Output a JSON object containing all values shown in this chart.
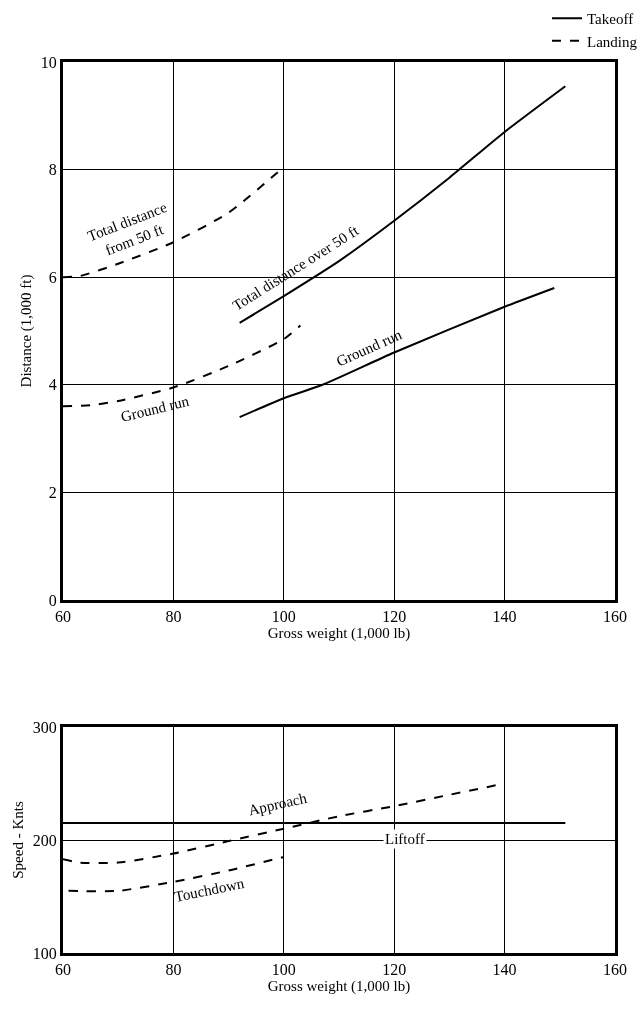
{
  "chart_data": [
    {
      "type": "line",
      "xlabel": "Gross weight (1,000 lb)",
      "ylabel": "Distance (1,000 ft)",
      "xlim": [
        60,
        160
      ],
      "xticks": [
        60,
        80,
        100,
        120,
        140,
        160
      ],
      "ylim": [
        0,
        10
      ],
      "yticks": [
        0,
        2,
        4,
        6,
        8,
        10
      ],
      "grid": true,
      "legend": "top right",
      "marker": "none",
      "series": [
        {
          "name": "Takeoff",
          "color": "#000000",
          "line_style": "solid",
          "x": [
            92,
            100,
            110,
            120,
            130,
            140,
            151
          ],
          "values": [
            5.15,
            5.65,
            6.3,
            7.05,
            7.85,
            8.7,
            9.55
          ]
        },
        {
          "color": "#000000",
          "line_style": "solid",
          "x": [
            92,
            100,
            107,
            120,
            140,
            149
          ],
          "values": [
            3.4,
            3.75,
            4.0,
            4.6,
            5.45,
            5.8
          ]
        },
        {
          "name": "Landing",
          "color": "#000000",
          "line_style": "dashed",
          "x": [
            60,
            63,
            70,
            80,
            90,
            100
          ],
          "values": [
            6.0,
            6.02,
            6.25,
            6.65,
            7.2,
            8.05
          ]
        },
        {
          "color": "#000000",
          "line_style": "dashed",
          "x": [
            60,
            65,
            70,
            80,
            90,
            100,
            103
          ],
          "values": [
            3.6,
            3.62,
            3.7,
            3.95,
            4.35,
            4.85,
            5.1
          ]
        }
      ],
      "annotations": [
        "Total distance over 50 ft",
        "Ground run",
        "Total distance\nfrom 50 ft",
        "Ground run"
      ]
    },
    {
      "type": "line",
      "xlabel": "Gross weight (1,000 lb)",
      "ylabel": "Speed - Knts",
      "xlim": [
        60,
        160
      ],
      "xticks": [
        60,
        80,
        100,
        120,
        140,
        160
      ],
      "ylim": [
        100,
        300
      ],
      "yticks": [
        100,
        200,
        300
      ],
      "grid": true,
      "legend": false,
      "marker": "none",
      "series": [
        {
          "color": "#000000",
          "line_style": "solid",
          "x": [
            60,
            151
          ],
          "values": [
            215,
            215
          ]
        },
        {
          "color": "#000000",
          "line_style": "dashed",
          "x": [
            60,
            63,
            70,
            80,
            90,
            100,
            110,
            120,
            130,
            140
          ],
          "values": [
            183,
            180,
            180,
            188,
            199,
            210,
            221,
            230,
            240,
            250
          ]
        },
        {
          "color": "#000000",
          "line_style": "dashed",
          "x": [
            61,
            70,
            80,
            90,
            100
          ],
          "values": [
            155,
            155,
            163,
            173,
            185
          ]
        }
      ],
      "annotations": [
        "Liftoff",
        "Approach",
        "Touchdown"
      ]
    }
  ]
}
